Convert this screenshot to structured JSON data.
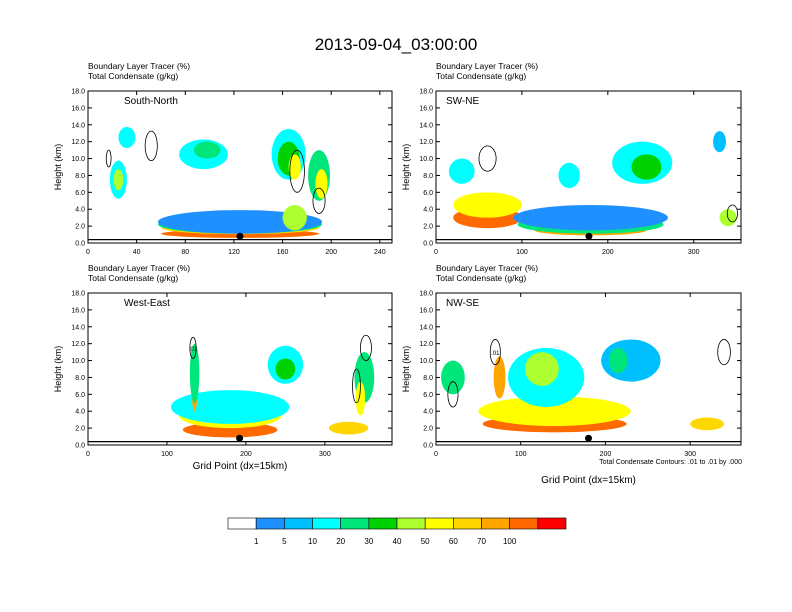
{
  "figure_title": "2013-09-04_03:00:00",
  "header_line1": "Boundary Layer Tracer   (%)",
  "header_line2": "Total Condensate   (g/kg)",
  "ylabel": "Height (km)",
  "xlabel": "Grid Point (dx=15km)",
  "contour_note": "Total Condensate Contours: .01 to .01 by .000",
  "contour_label": ".01",
  "colorbar": {
    "levels": [
      "1",
      "5",
      "10",
      "20",
      "30",
      "40",
      "50",
      "60",
      "70",
      "100"
    ],
    "colors": [
      "#ffffff",
      "#1e90ff",
      "#00bfff",
      "#00ffff",
      "#00e67a",
      "#00d200",
      "#adff2f",
      "#ffff00",
      "#ffd700",
      "#ffa500",
      "#ff6a00",
      "#ff0000"
    ]
  },
  "chart_data": [
    {
      "type": "heatmap",
      "panel_label": "South-North",
      "xlim": [
        0,
        250
      ],
      "ylim": [
        0,
        18
      ],
      "xticks": [
        "0",
        "40",
        "80",
        "120",
        "160",
        "200",
        "240"
      ],
      "yticks": [
        "0.0",
        "2.0",
        "4.0",
        "6.0",
        "8.0",
        "10.0",
        "12.0",
        "14.0",
        "16.0",
        "18.0"
      ],
      "center_marker_x": 125,
      "blobs": [
        {
          "x": 125,
          "y": 1.1,
          "w": 130,
          "h": 1.0,
          "v": 100
        },
        {
          "x": 125,
          "y": 1.8,
          "w": 130,
          "h": 1.5,
          "v": 60
        },
        {
          "x": 125,
          "y": 2.2,
          "w": 135,
          "h": 2.2,
          "v": 20
        },
        {
          "x": 125,
          "y": 2.5,
          "w": 135,
          "h": 2.8,
          "v": 3
        },
        {
          "x": 25,
          "y": 7.5,
          "w": 14,
          "h": 4.5,
          "v": 15
        },
        {
          "x": 25,
          "y": 7.5,
          "w": 8,
          "h": 2.5,
          "v": 40
        },
        {
          "x": 32,
          "y": 12.5,
          "w": 14,
          "h": 2.5,
          "v": 10
        },
        {
          "x": 95,
          "y": 10.5,
          "w": 40,
          "h": 3.5,
          "v": 10
        },
        {
          "x": 98,
          "y": 11,
          "w": 22,
          "h": 2,
          "v": 25
        },
        {
          "x": 165,
          "y": 10.5,
          "w": 28,
          "h": 6,
          "v": 12
        },
        {
          "x": 165,
          "y": 10,
          "w": 18,
          "h": 4,
          "v": 35
        },
        {
          "x": 170,
          "y": 9,
          "w": 10,
          "h": 3,
          "v": 55
        },
        {
          "x": 190,
          "y": 8,
          "w": 18,
          "h": 6,
          "v": 25
        },
        {
          "x": 192,
          "y": 7,
          "w": 10,
          "h": 3.5,
          "v": 55
        },
        {
          "x": 170,
          "y": 3,
          "w": 20,
          "h": 3,
          "v": 45
        }
      ],
      "contours": [
        {
          "x": 52,
          "y": 11.5,
          "w": 10,
          "h": 3.5
        },
        {
          "x": 17,
          "y": 10,
          "w": 4,
          "h": 2
        },
        {
          "x": 172,
          "y": 8.5,
          "w": 12,
          "h": 5
        },
        {
          "x": 190,
          "y": 5,
          "w": 10,
          "h": 3
        }
      ]
    },
    {
      "type": "heatmap",
      "panel_label": "SW-NE",
      "xlim": [
        0,
        355
      ],
      "ylim": [
        0,
        18
      ],
      "xticks": [
        "0",
        "100",
        "200",
        "300"
      ],
      "yticks": [
        "0.0",
        "2.0",
        "4.0",
        "6.0",
        "8.0",
        "10.0",
        "12.0",
        "14.0",
        "16.0",
        "18.0"
      ],
      "center_marker_x": 178,
      "blobs": [
        {
          "x": 60,
          "y": 3,
          "w": 80,
          "h": 2.5,
          "v": 100
        },
        {
          "x": 180,
          "y": 1.5,
          "w": 130,
          "h": 1.2,
          "v": 80
        },
        {
          "x": 60,
          "y": 4.5,
          "w": 80,
          "h": 3,
          "v": 50
        },
        {
          "x": 180,
          "y": 2.2,
          "w": 170,
          "h": 2.2,
          "v": 20
        },
        {
          "x": 180,
          "y": 3,
          "w": 180,
          "h": 3,
          "v": 3
        },
        {
          "x": 240,
          "y": 9.5,
          "w": 70,
          "h": 5,
          "v": 12
        },
        {
          "x": 245,
          "y": 9,
          "w": 35,
          "h": 3,
          "v": 35
        },
        {
          "x": 30,
          "y": 8.5,
          "w": 30,
          "h": 3,
          "v": 15
        },
        {
          "x": 155,
          "y": 8,
          "w": 25,
          "h": 3,
          "v": 12
        },
        {
          "x": 340,
          "y": 3,
          "w": 20,
          "h": 2,
          "v": 40
        },
        {
          "x": 330,
          "y": 12,
          "w": 15,
          "h": 2.5,
          "v": 8
        }
      ],
      "contours": [
        {
          "x": 60,
          "y": 10,
          "w": 20,
          "h": 3
        },
        {
          "x": 345,
          "y": 3.5,
          "w": 12,
          "h": 2
        }
      ]
    },
    {
      "type": "heatmap",
      "panel_label": "West-East",
      "xlim": [
        0,
        385
      ],
      "ylim": [
        0,
        18
      ],
      "xticks": [
        "0",
        "100",
        "200",
        "300"
      ],
      "yticks": [
        "0.0",
        "2.0",
        "4.0",
        "6.0",
        "8.0",
        "10.0",
        "12.0",
        "14.0",
        "16.0",
        "18.0"
      ],
      "center_marker_x": 192,
      "blobs": [
        {
          "x": 180,
          "y": 1.8,
          "w": 120,
          "h": 1.8,
          "v": 100
        },
        {
          "x": 180,
          "y": 3.5,
          "w": 130,
          "h": 3,
          "v": 50
        },
        {
          "x": 180,
          "y": 4.5,
          "w": 150,
          "h": 4,
          "v": 15
        },
        {
          "x": 135,
          "y": 7,
          "w": 8,
          "h": 6,
          "v": 80
        },
        {
          "x": 135,
          "y": 8.5,
          "w": 12,
          "h": 7,
          "v": 20
        },
        {
          "x": 250,
          "y": 9.5,
          "w": 45,
          "h": 4.5,
          "v": 15
        },
        {
          "x": 250,
          "y": 9,
          "w": 25,
          "h": 2.5,
          "v": 35
        },
        {
          "x": 350,
          "y": 8,
          "w": 25,
          "h": 6,
          "v": 20
        },
        {
          "x": 345,
          "y": 5.5,
          "w": 12,
          "h": 4,
          "v": 55
        },
        {
          "x": 330,
          "y": 2,
          "w": 50,
          "h": 1.5,
          "v": 60
        }
      ],
      "contours": [
        {
          "x": 133,
          "y": 11.5,
          "w": 8,
          "h": 2.5
        },
        {
          "x": 352,
          "y": 11.5,
          "w": 14,
          "h": 3
        },
        {
          "x": 340,
          "y": 7,
          "w": 10,
          "h": 4
        }
      ]
    },
    {
      "type": "heatmap",
      "panel_label": "NW-SE",
      "xlim": [
        0,
        360
      ],
      "ylim": [
        0,
        18
      ],
      "xticks": [
        "0",
        "100",
        "200",
        "300"
      ],
      "yticks": [
        "0.0",
        "2.0",
        "4.0",
        "6.0",
        "8.0",
        "10.0",
        "12.0",
        "14.0",
        "16.0",
        "18.0"
      ],
      "center_marker_x": 180,
      "blobs": [
        {
          "x": 140,
          "y": 2.5,
          "w": 170,
          "h": 2,
          "v": 100
        },
        {
          "x": 140,
          "y": 4,
          "w": 180,
          "h": 3.5,
          "v": 50
        },
        {
          "x": 75,
          "y": 8,
          "w": 14,
          "h": 5,
          "v": 80
        },
        {
          "x": 130,
          "y": 8,
          "w": 90,
          "h": 7,
          "v": 15
        },
        {
          "x": 125,
          "y": 9,
          "w": 40,
          "h": 4,
          "v": 40
        },
        {
          "x": 20,
          "y": 8,
          "w": 28,
          "h": 4,
          "v": 20
        },
        {
          "x": 230,
          "y": 10,
          "w": 70,
          "h": 5,
          "v": 8
        },
        {
          "x": 215,
          "y": 10,
          "w": 22,
          "h": 3,
          "v": 25
        },
        {
          "x": 320,
          "y": 2.5,
          "w": 40,
          "h": 1.5,
          "v": 60
        }
      ],
      "contours": [
        {
          "x": 70,
          "y": 11,
          "w": 12,
          "h": 3
        },
        {
          "x": 20,
          "y": 6,
          "w": 12,
          "h": 3
        },
        {
          "x": 340,
          "y": 11,
          "w": 15,
          "h": 3
        }
      ]
    }
  ]
}
